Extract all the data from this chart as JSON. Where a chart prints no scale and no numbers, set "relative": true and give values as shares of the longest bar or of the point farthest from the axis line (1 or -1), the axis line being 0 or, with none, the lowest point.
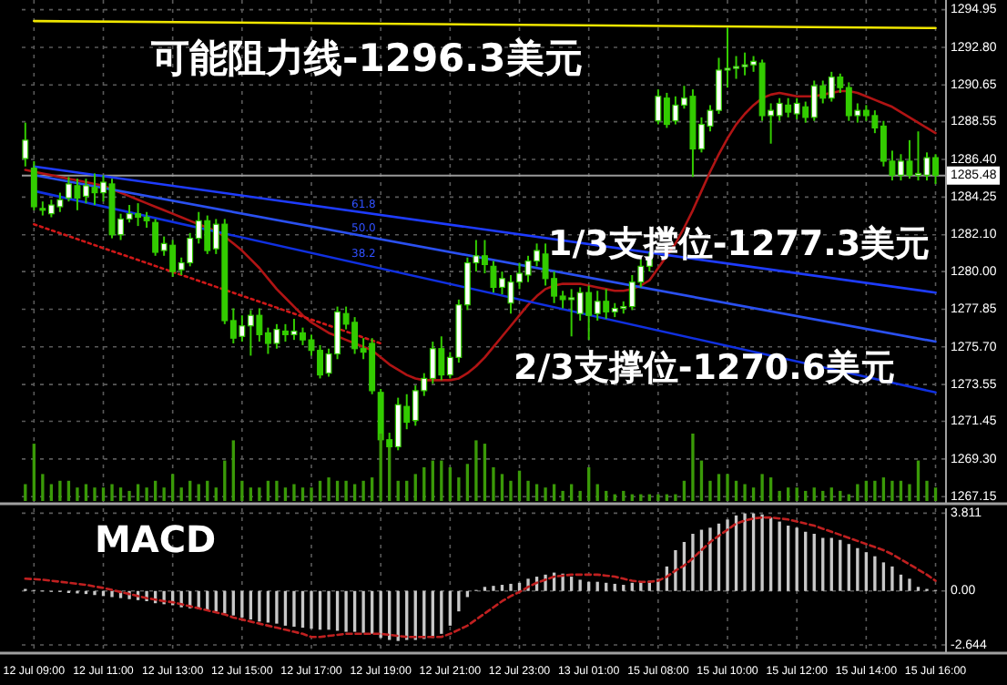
{
  "chart_data": [
    {
      "type": "candlestick",
      "color": "#33cc00",
      "categories": [
        null,
        "12 Jul 09:00",
        null,
        null,
        null,
        null,
        null,
        null,
        null,
        "12 Jul 11:00",
        null,
        null,
        null,
        null,
        null,
        null,
        null,
        "12 Jul 13:00",
        null,
        null,
        null,
        null,
        null,
        null,
        null,
        "12 Jul 15:00",
        null,
        null,
        null,
        null,
        null,
        null,
        null,
        "12 Jul 17:00",
        null,
        null,
        null,
        null,
        null,
        null,
        null,
        "12 Jul 19:00",
        null,
        null,
        null,
        null,
        null,
        null,
        null,
        "12 Jul 21:00",
        null,
        null,
        null,
        null,
        null,
        null,
        null,
        "12 Jul 23:00",
        null,
        null,
        null,
        null,
        null,
        null,
        null,
        "13 Jul 01:00",
        null,
        null,
        null,
        null,
        null,
        null,
        null,
        "15 Jul 08:00",
        null,
        null,
        null,
        null,
        null,
        null,
        null,
        "15 Jul 10:00",
        null,
        null,
        null,
        null,
        null,
        null,
        null,
        "15 Jul 12:00",
        null,
        null,
        null,
        null,
        null,
        null,
        null,
        "15 Jul 14:00",
        null,
        null,
        null,
        null,
        null,
        null,
        null,
        "15 Jul 16:00"
      ],
      "ohlc": [
        [
          1286.45,
          1288.5,
          1286.0,
          1287.5
        ],
        [
          1285.9,
          1286.3,
          1283.5,
          1283.7
        ],
        [
          1283.6,
          1284.0,
          1283.2,
          1283.5
        ],
        [
          1283.3,
          1284.1,
          1283.1,
          1283.8
        ],
        [
          1283.7,
          1284.5,
          1283.4,
          1284.1
        ],
        [
          1284.2,
          1285.4,
          1284.0,
          1285.0
        ],
        [
          1284.9,
          1285.3,
          1283.5,
          1284.2
        ],
        [
          1284.3,
          1285.3,
          1283.9,
          1284.9
        ],
        [
          1284.8,
          1285.6,
          1283.8,
          1284.5
        ],
        [
          1284.5,
          1285.5,
          1284.0,
          1285.1
        ],
        [
          1285.0,
          1285.3,
          1281.9,
          1282.1
        ],
        [
          1282.1,
          1283.3,
          1281.8,
          1283.0
        ],
        [
          1283.0,
          1283.8,
          1282.8,
          1283.3
        ],
        [
          1283.3,
          1283.9,
          1282.6,
          1283.1
        ],
        [
          1283.1,
          1283.4,
          1282.5,
          1282.9
        ],
        [
          1282.8,
          1283.0,
          1280.9,
          1281.1
        ],
        [
          1281.2,
          1282.0,
          1280.9,
          1281.6
        ],
        [
          1281.5,
          1281.8,
          1279.7,
          1280.0
        ],
        [
          1280.1,
          1280.8,
          1279.8,
          1280.5
        ],
        [
          1280.5,
          1282.2,
          1280.3,
          1281.9
        ],
        [
          1281.9,
          1283.4,
          1281.6,
          1282.9
        ],
        [
          1282.9,
          1283.2,
          1281.0,
          1281.2
        ],
        [
          1281.3,
          1283.0,
          1281.0,
          1282.7
        ],
        [
          1282.7,
          1283.0,
          1277.0,
          1277.2
        ],
        [
          1277.2,
          1277.9,
          1275.9,
          1276.2
        ],
        [
          1276.3,
          1277.5,
          1276.0,
          1276.9
        ],
        [
          1276.9,
          1277.8,
          1275.2,
          1277.5
        ],
        [
          1277.5,
          1277.9,
          1276.0,
          1276.4
        ],
        [
          1276.5,
          1276.8,
          1275.3,
          1275.9
        ],
        [
          1275.9,
          1277.0,
          1275.6,
          1276.7
        ],
        [
          1276.6,
          1277.0,
          1276.0,
          1276.4
        ],
        [
          1276.4,
          1277.3,
          1276.1,
          1276.6
        ],
        [
          1276.5,
          1276.8,
          1275.8,
          1276.1
        ],
        [
          1276.1,
          1276.4,
          1275.2,
          1275.5
        ],
        [
          1275.5,
          1275.8,
          1273.9,
          1274.1
        ],
        [
          1274.2,
          1275.6,
          1274.0,
          1275.3
        ],
        [
          1275.3,
          1278.0,
          1275.0,
          1277.7
        ],
        [
          1277.6,
          1278.0,
          1276.7,
          1277.0
        ],
        [
          1277.1,
          1277.4,
          1275.3,
          1275.6
        ],
        [
          1275.6,
          1276.2,
          1275.0,
          1275.4
        ],
        [
          1275.9,
          1276.2,
          1273.0,
          1273.2
        ],
        [
          1273.1,
          1273.3,
          1269.9,
          1270.4
        ],
        [
          1270.4,
          1270.8,
          1269.6,
          1270.0
        ],
        [
          1270.0,
          1272.8,
          1269.8,
          1272.4
        ],
        [
          1272.3,
          1273.0,
          1271.0,
          1271.4
        ],
        [
          1271.5,
          1273.5,
          1271.2,
          1273.2
        ],
        [
          1273.2,
          1274.2,
          1272.9,
          1273.9
        ],
        [
          1273.9,
          1276.0,
          1273.6,
          1275.6
        ],
        [
          1275.6,
          1276.3,
          1273.8,
          1274.1
        ],
        [
          1274.1,
          1275.4,
          1273.9,
          1275.1
        ],
        [
          1275.1,
          1278.4,
          1274.8,
          1278.1
        ],
        [
          1278.1,
          1280.8,
          1277.8,
          1280.5
        ],
        [
          1280.5,
          1281.8,
          1280.0,
          1280.9
        ],
        [
          1280.9,
          1281.8,
          1279.9,
          1280.4
        ],
        [
          1280.3,
          1280.6,
          1278.8,
          1279.1
        ],
        [
          1279.1,
          1280.0,
          1278.7,
          1279.6
        ],
        [
          1278.2,
          1279.8,
          1277.6,
          1279.4
        ],
        [
          1279.4,
          1280.5,
          1279.0,
          1279.9
        ],
        [
          1279.8,
          1280.9,
          1279.4,
          1280.6
        ],
        [
          1280.6,
          1281.6,
          1280.3,
          1281.2
        ],
        [
          1281.0,
          1281.6,
          1279.2,
          1279.6
        ],
        [
          1279.6,
          1280.0,
          1278.2,
          1278.6
        ],
        [
          1278.6,
          1278.9,
          1277.9,
          1278.4
        ],
        [
          1278.4,
          1279.0,
          1276.3,
          1278.5
        ],
        [
          1277.6,
          1279.1,
          1277.2,
          1278.8
        ],
        [
          1278.8,
          1279.2,
          1276.1,
          1277.5
        ],
        [
          1277.6,
          1278.9,
          1277.2,
          1278.3
        ],
        [
          1278.3,
          1279.0,
          1277.3,
          1277.7
        ],
        [
          1277.7,
          1278.2,
          1277.4,
          1277.9
        ],
        [
          1277.9,
          1278.3,
          1277.6,
          1278.0
        ],
        [
          1278.0,
          1279.8,
          1277.8,
          1279.4
        ],
        [
          1279.4,
          1280.7,
          1279.1,
          1280.3
        ],
        [
          1280.3,
          1281.1,
          1280.0,
          1280.8
        ],
        [
          1288.6,
          1290.4,
          1288.4,
          1290.0
        ],
        [
          1289.9,
          1290.2,
          1288.2,
          1288.4
        ],
        [
          1288.6,
          1290.0,
          1288.4,
          1289.5
        ],
        [
          1289.5,
          1290.6,
          1289.3,
          1289.9
        ],
        [
          1290.0,
          1290.4,
          1285.4,
          1287.0
        ],
        [
          1287.0,
          1288.8,
          1286.8,
          1288.4
        ],
        [
          1288.3,
          1289.5,
          1288.0,
          1289.2
        ],
        [
          1289.2,
          1292.2,
          1289.0,
          1291.5
        ],
        [
          1291.5,
          1293.9,
          1290.5,
          1291.6
        ],
        [
          1291.6,
          1292.3,
          1291.0,
          1291.7
        ],
        [
          1291.7,
          1292.5,
          1291.2,
          1291.8
        ],
        [
          1291.8,
          1292.3,
          1291.4,
          1292.0
        ],
        [
          1291.9,
          1292.1,
          1288.6,
          1288.9
        ],
        [
          1288.9,
          1289.6,
          1287.3,
          1289.2
        ],
        [
          1288.9,
          1289.9,
          1288.6,
          1289.6
        ],
        [
          1289.5,
          1289.9,
          1288.8,
          1289.1
        ],
        [
          1289.0,
          1289.9,
          1288.7,
          1289.6
        ],
        [
          1289.4,
          1289.7,
          1288.5,
          1288.8
        ],
        [
          1288.8,
          1290.9,
          1288.6,
          1290.6
        ],
        [
          1290.6,
          1290.9,
          1289.6,
          1289.9
        ],
        [
          1289.9,
          1291.4,
          1289.7,
          1291.1
        ],
        [
          1291.1,
          1291.3,
          1290.2,
          1290.5
        ],
        [
          1290.5,
          1290.8,
          1288.6,
          1288.9
        ],
        [
          1288.9,
          1289.6,
          1288.5,
          1289.2
        ],
        [
          1289.2,
          1289.5,
          1288.6,
          1288.9
        ],
        [
          1288.9,
          1289.2,
          1287.9,
          1288.2
        ],
        [
          1288.3,
          1288.6,
          1286.0,
          1286.3
        ],
        [
          1286.3,
          1286.9,
          1285.2,
          1285.5
        ],
        [
          1285.5,
          1286.7,
          1285.2,
          1286.3
        ],
        [
          1286.3,
          1287.5,
          1285.3,
          1285.5
        ],
        [
          1285.5,
          1288.0,
          1285.2,
          1285.6
        ],
        [
          1285.5,
          1286.8,
          1285.2,
          1286.5
        ],
        [
          1286.5,
          1286.7,
          1285.0,
          1285.5
        ]
      ],
      "series": [
        {
          "type": "line",
          "color": "#b01414",
          "values": [
            1285.8,
            1285.7,
            1285.6,
            1285.5,
            1285.4,
            1285.3,
            1285.2,
            1285.1,
            1285.0,
            1284.9,
            1284.7,
            1284.5,
            1284.3,
            1284.1,
            1283.9,
            1283.7,
            1283.5,
            1283.3,
            1283.1,
            1282.9,
            1282.7,
            1282.5,
            1282.3,
            1282.0,
            1281.6,
            1281.2,
            1280.7,
            1280.2,
            1279.6,
            1279.0,
            1278.5,
            1278.0,
            1277.5,
            1277.1,
            1276.8,
            1276.5,
            1276.3,
            1276.1,
            1275.9,
            1275.7,
            1275.5,
            1275.1,
            1274.7,
            1274.4,
            1274.1,
            1273.9,
            1273.8,
            1273.8,
            1273.8,
            1273.8,
            1273.9,
            1274.2,
            1274.6,
            1275.1,
            1275.7,
            1276.3,
            1276.9,
            1277.5,
            1278.1,
            1278.6,
            1279.0,
            1279.2,
            1279.3,
            1279.3,
            1279.3,
            1279.2,
            1279.1,
            1279.0,
            1278.9,
            1278.9,
            1279.0,
            1279.2,
            1279.5,
            1280.2,
            1280.9,
            1281.6,
            1282.5,
            1283.5,
            1284.6,
            1285.7,
            1286.7,
            1287.6,
            1288.4,
            1289.0,
            1289.5,
            1289.9,
            1290.1,
            1290.2,
            1290.1,
            1290.0,
            1290.0,
            1290.0,
            1290.1,
            1290.2,
            1290.3,
            1290.3,
            1290.2,
            1290.0,
            1289.8,
            1289.6,
            1289.4,
            1289.1,
            1288.8,
            1288.5,
            1288.2,
            1287.9
          ]
        },
        {
          "type": "line",
          "color": "#d01818",
          "line_style": "dotted",
          "x": [
            "12 Jul 09:00",
            "12 Jul 19:00"
          ],
          "values": [
            1282.7,
            1275.9
          ]
        },
        {
          "type": "line",
          "color": "#1e3cff",
          "x": [
            "12 Jul 09:00",
            "15 Jul 16:00"
          ],
          "values": [
            1286.0,
            1278.8
          ]
        },
        {
          "type": "line",
          "color": "#2a50f0",
          "x": [
            "12 Jul 09:00",
            "15 Jul 16:00"
          ],
          "values": [
            1285.5,
            1276.0
          ]
        },
        {
          "type": "line",
          "color": "#1030e0",
          "x": [
            "12 Jul 09:00",
            "15 Jul 16:00"
          ],
          "values": [
            1284.6,
            1273.1
          ]
        },
        {
          "type": "line",
          "color": "#f0e600",
          "x": [
            "12 Jul 09:00",
            "15 Jul 16:00"
          ],
          "values": [
            1294.3,
            1293.9
          ]
        }
      ],
      "ylim": [
        1266.8,
        1295.5
      ],
      "yticks": [
        1294.95,
        {
          "value": 1292.8,
          "label": "1292.80"
        },
        1290.65,
        1288.55,
        {
          "value": 1286.4,
          "label": "1286.40"
        },
        1284.25,
        {
          "value": 1282.1,
          "label": "1282.10"
        },
        {
          "value": 1280,
          "label": "1280.00"
        },
        1277.85,
        {
          "value": 1275.7,
          "label": "1275.70"
        },
        1273.55,
        1271.45,
        {
          "value": 1269.3,
          "label": "1269.30"
        },
        1267.15
      ],
      "tick_labels": "y",
      "grid": true,
      "ref_lines": [
        {
          "axis": "y",
          "value": 1285.48,
          "label": "1285.48",
          "color": "#9a9a9a"
        }
      ],
      "annotations": [
        "可能阻力线-1296.3美元",
        "1/3支撑位-1277.3美元",
        "2/3支撑位-1270.6美元",
        "61.8",
        "50.0",
        "38.2"
      ]
    },
    {
      "type": "bar",
      "relative": true,
      "color": "#3a9a08",
      "tick_labels": false,
      "categories": [
        null,
        null,
        null,
        null,
        null,
        null,
        null,
        null,
        null,
        null,
        null,
        null,
        null,
        null,
        null,
        null,
        null,
        null,
        null,
        null,
        null,
        null,
        null,
        null,
        null,
        null,
        null,
        null,
        null,
        null,
        null,
        null,
        null,
        null,
        null,
        null,
        null,
        null,
        null,
        null,
        null,
        null,
        null,
        null,
        null,
        null,
        null,
        null,
        null,
        null,
        null,
        null,
        null,
        null,
        null,
        null,
        null,
        null,
        null,
        null,
        null,
        null,
        null,
        null,
        null,
        null,
        null,
        null,
        null,
        null,
        null,
        null,
        null,
        null,
        null,
        null,
        null,
        null,
        null,
        null,
        null,
        null,
        null,
        null,
        null,
        null,
        null,
        null,
        null,
        null,
        null,
        null,
        null,
        null,
        null,
        null,
        null,
        null,
        null,
        null,
        null,
        null,
        null,
        null,
        null,
        null
      ],
      "values": [
        0.25,
        0.85,
        0.4,
        0.25,
        0.3,
        0.3,
        0.2,
        0.25,
        0.2,
        0.2,
        0.25,
        0.2,
        0.15,
        0.25,
        0.2,
        0.3,
        0.2,
        0.4,
        0.2,
        0.3,
        0.25,
        0.3,
        0.2,
        0.6,
        0.9,
        0.3,
        0.2,
        0.2,
        0.3,
        0.3,
        0.2,
        0.25,
        0.2,
        0.2,
        0.3,
        0.35,
        0.3,
        0.3,
        0.25,
        0.3,
        0.35,
        1.0,
        0.8,
        0.3,
        0.3,
        0.4,
        0.5,
        0.6,
        0.6,
        0.5,
        0.35,
        0.55,
        0.9,
        0.85,
        0.5,
        0.4,
        0.3,
        0.45,
        0.3,
        0.25,
        0.2,
        0.25,
        0.15,
        0.25,
        0.15,
        0.5,
        0.25,
        0.15,
        0.1,
        0.15,
        0.1,
        0.1,
        0.1,
        0.1,
        0.1,
        0.1,
        0.3,
        1.0,
        0.6,
        0.3,
        0.4,
        0.4,
        0.3,
        0.25,
        0.2,
        0.4,
        0.35,
        0.15,
        0.2,
        0.2,
        0.15,
        0.2,
        0.15,
        0.2,
        0.15,
        0.1,
        0.25,
        0.3,
        0.3,
        0.35,
        0.3,
        0.3,
        0.25,
        0.6,
        0.3,
        0.2
      ]
    },
    {
      "type": "bar",
      "categories": [
        null,
        "12 Jul 09:00",
        null,
        null,
        null,
        null,
        null,
        null,
        null,
        "12 Jul 11:00",
        null,
        null,
        null,
        null,
        null,
        null,
        null,
        "12 Jul 13:00",
        null,
        null,
        null,
        null,
        null,
        null,
        null,
        "12 Jul 15:00",
        null,
        null,
        null,
        null,
        null,
        null,
        null,
        "12 Jul 17:00",
        null,
        null,
        null,
        null,
        null,
        null,
        null,
        "12 Jul 19:00",
        null,
        null,
        null,
        null,
        null,
        null,
        null,
        "12 Jul 21:00",
        null,
        null,
        null,
        null,
        null,
        null,
        null,
        "12 Jul 23:00",
        null,
        null,
        null,
        null,
        null,
        null,
        null,
        "13 Jul 01:00",
        null,
        null,
        null,
        null,
        null,
        null,
        null,
        "15 Jul 08:00",
        null,
        null,
        null,
        null,
        null,
        null,
        null,
        "15 Jul 10:00",
        null,
        null,
        null,
        null,
        null,
        null,
        null,
        "15 Jul 12:00",
        null,
        null,
        null,
        null,
        null,
        null,
        null,
        "15 Jul 14:00",
        null,
        null,
        null,
        null,
        null,
        null,
        null,
        "15 Jul 16:00"
      ],
      "series": [
        {
          "type": "bar",
          "color": "#c8c8c8",
          "values": [
            0.1,
            0.05,
            0.02,
            0,
            -0.05,
            -0.1,
            -0.12,
            -0.15,
            -0.2,
            -0.25,
            -0.3,
            -0.35,
            -0.4,
            -0.45,
            -0.5,
            -0.6,
            -0.65,
            -0.7,
            -0.8,
            -0.85,
            -0.9,
            -0.95,
            -1.0,
            -1.1,
            -1.2,
            -1.3,
            -1.4,
            -1.5,
            -1.55,
            -1.6,
            -1.7,
            -1.75,
            -1.8,
            -1.85,
            -1.9,
            -1.9,
            -1.95,
            -2.0,
            -2.0,
            -2.05,
            -2.1,
            -2.3,
            -2.4,
            -2.45,
            -2.4,
            -2.4,
            -2.35,
            -2.3,
            -2.1,
            -1.7,
            -1.0,
            -0.3,
            0.05,
            0.2,
            0.25,
            0.3,
            0.35,
            0.4,
            0.6,
            0.7,
            0.8,
            0.9,
            0.85,
            0.7,
            0.55,
            0.45,
            0.45,
            0.4,
            0.35,
            0.3,
            0.4,
            0.45,
            0.5,
            0.6,
            1.2,
            2.0,
            2.4,
            2.8,
            3.0,
            3.1,
            3.3,
            3.5,
            3.7,
            3.8,
            3.8,
            3.75,
            3.6,
            3.4,
            3.2,
            3.1,
            2.9,
            2.8,
            2.6,
            2.6,
            2.5,
            2.3,
            2.1,
            1.9,
            1.7,
            1.4,
            1.2,
            0.8,
            0.6,
            0.2,
            0.1,
            0.05
          ]
        },
        {
          "type": "line",
          "color": "#c02020",
          "line_style": "dashed",
          "values": [
            0.6,
            0.58,
            0.55,
            0.5,
            0.45,
            0.4,
            0.35,
            0.3,
            0.22,
            0.15,
            0.05,
            -0.05,
            -0.15,
            -0.25,
            -0.35,
            -0.42,
            -0.5,
            -0.55,
            -0.65,
            -0.75,
            -0.85,
            -0.95,
            -1.05,
            -1.15,
            -1.3,
            -1.4,
            -1.5,
            -1.6,
            -1.7,
            -1.8,
            -1.9,
            -2.0,
            -2.1,
            -2.25,
            -2.25,
            -2.2,
            -2.15,
            -2.1,
            -2.1,
            -2.1,
            -2.1,
            -2.1,
            -2.15,
            -2.2,
            -2.25,
            -2.25,
            -2.25,
            -2.25,
            -2.25,
            -2.1,
            -1.9,
            -1.7,
            -1.4,
            -1.1,
            -0.8,
            -0.5,
            -0.25,
            -0.05,
            0.2,
            0.4,
            0.55,
            0.7,
            0.75,
            0.8,
            0.8,
            0.8,
            0.8,
            0.75,
            0.7,
            0.6,
            0.5,
            0.45,
            0.45,
            0.5,
            0.7,
            1.0,
            1.25,
            1.6,
            2.0,
            2.4,
            2.7,
            3.0,
            3.3,
            3.45,
            3.55,
            3.6,
            3.6,
            3.55,
            3.5,
            3.4,
            3.3,
            3.2,
            3.05,
            2.9,
            2.75,
            2.6,
            2.45,
            2.3,
            2.15,
            2.0,
            1.8,
            1.55,
            1.3,
            1.05,
            0.8,
            0.5
          ]
        }
      ],
      "ylim": [
        -3.0,
        4.05
      ],
      "yticks": [
        3.811,
        {
          "value": 0,
          "label": "0.00"
        },
        {
          "value": -2.644,
          "label": "-2.644"
        }
      ],
      "grid": true,
      "annotations": [
        "MACD"
      ]
    }
  ]
}
